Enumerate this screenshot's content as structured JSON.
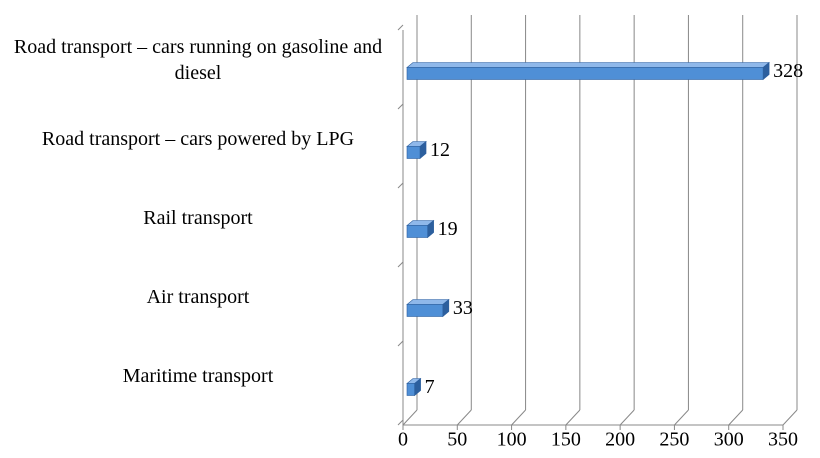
{
  "chart_data": {
    "type": "bar",
    "orientation": "horizontal",
    "categories": [
      "Road transport – cars running on gasoline and diesel",
      "Road transport – cars powered by LPG",
      "Rail transport",
      "Air transport",
      "Maritime transport"
    ],
    "values": [
      328,
      12,
      19,
      33,
      7
    ],
    "color": "#4f8fd6",
    "xlim": [
      0,
      350
    ],
    "xticks": [
      0,
      50,
      100,
      150,
      200,
      250,
      300,
      350
    ],
    "grid": true
  }
}
